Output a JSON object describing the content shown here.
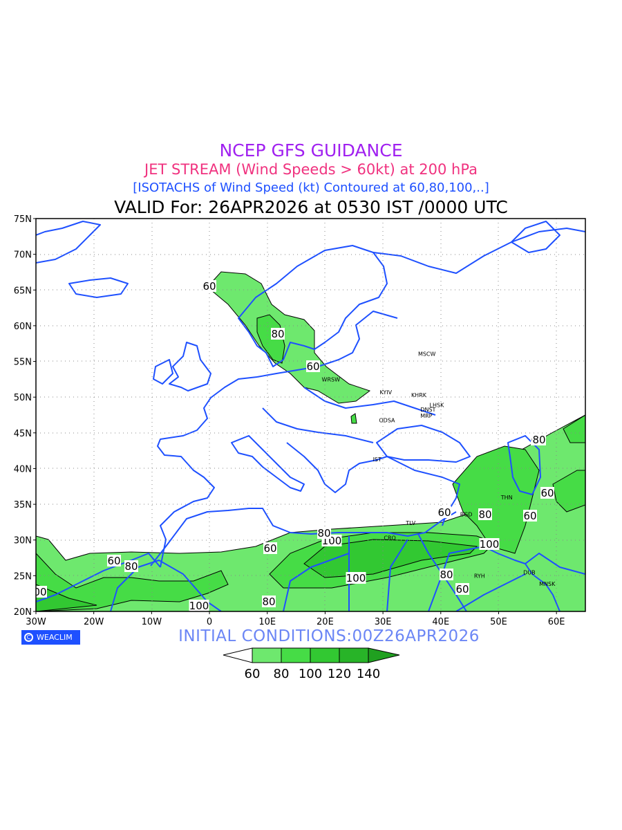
{
  "titles": {
    "line1": "NCEP GFS GUIDANCE",
    "line2": "JET STREAM (Wind Speeds > 60kt) at 200 hPa",
    "line3": "[ISOTACHS of Wind Speed (kt) Contoured at 60,80,100,..]",
    "line4": "VALID For: 26APR2026 at 0530 IST /0000 UTC"
  },
  "axes": {
    "lat_labels": [
      "75N",
      "70N",
      "65N",
      "60N",
      "55N",
      "50N",
      "45N",
      "40N",
      "35N",
      "30N",
      "25N",
      "20N"
    ],
    "lon_labels": [
      "30W",
      "20W",
      "10W",
      "0",
      "10E",
      "20E",
      "30E",
      "40E",
      "50E",
      "60E"
    ]
  },
  "cities": [
    {
      "name": "MSCW",
      "lon": 37.6,
      "lat": 55.8
    },
    {
      "name": "WRSW",
      "lon": 21.0,
      "lat": 52.2
    },
    {
      "name": "KYIV",
      "lon": 30.5,
      "lat": 50.4
    },
    {
      "name": "KHRK",
      "lon": 36.2,
      "lat": 50.0
    },
    {
      "name": "LHSK",
      "lon": 39.3,
      "lat": 48.6
    },
    {
      "name": "DNST",
      "lon": 37.8,
      "lat": 48.0
    },
    {
      "name": "MRP",
      "lon": 37.5,
      "lat": 47.1
    },
    {
      "name": "ODSA",
      "lon": 30.7,
      "lat": 46.5
    },
    {
      "name": "IST",
      "lon": 29.0,
      "lat": 41.0
    },
    {
      "name": "TLV",
      "lon": 34.8,
      "lat": 32.1
    },
    {
      "name": "CRO",
      "lon": 31.2,
      "lat": 30.0
    },
    {
      "name": "BGD",
      "lon": 44.4,
      "lat": 33.3
    },
    {
      "name": "THN",
      "lon": 51.4,
      "lat": 35.7
    },
    {
      "name": "MNSK",
      "lon": 58.4,
      "lat": 23.6
    },
    {
      "name": "DUB",
      "lon": 55.3,
      "lat": 25.2
    },
    {
      "name": "RYH",
      "lon": 46.7,
      "lat": 24.7
    }
  ],
  "contour_labels": [
    "60",
    "80",
    "60",
    "60",
    "60",
    "80",
    "100",
    "100",
    "80",
    "60",
    "60",
    "100",
    "60",
    "80",
    "80",
    "100",
    "60",
    "80",
    "60",
    "80",
    "00"
  ],
  "logo": "WEACLIM",
  "initial_conditions": "INITIAL CONDITIONS:00Z26APR2026",
  "legend": {
    "ticks": [
      "60",
      "80",
      "100",
      "120",
      "140"
    ],
    "colors": [
      "#ffffff",
      "#6ee86e",
      "#46dc46",
      "#32c832",
      "#28b428",
      "#20a020"
    ]
  },
  "colors": {
    "coast": "#1e50ff",
    "contour": "#000000",
    "fill80": "#6ee86e",
    "fill100": "#46dc46",
    "fill120": "#32c832"
  }
}
